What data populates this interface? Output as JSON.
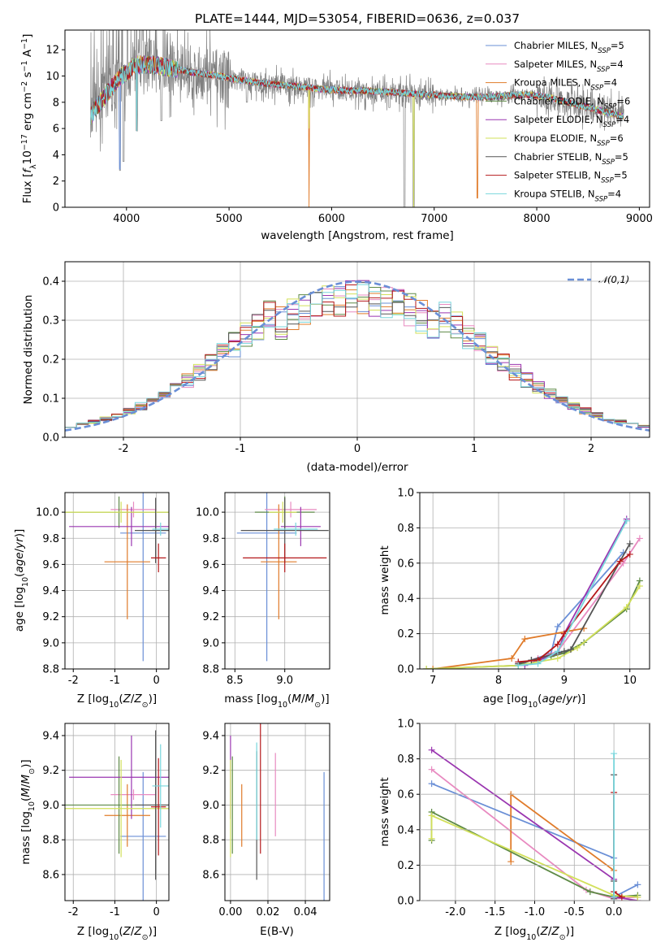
{
  "title": "PLATE=1444, MJD=53054, FIBERID=0636, z=0.037",
  "models": [
    {
      "name": "Chabrier MILES",
      "nssp": "5",
      "color": "#6a8fd6"
    },
    {
      "name": "Salpeter MILES",
      "nssp": "4",
      "color": "#e88ac0"
    },
    {
      "name": "Kroupa MILES",
      "nssp": "4",
      "color": "#e07b2a"
    },
    {
      "name": "Chabrier ELODIE",
      "nssp": "6",
      "color": "#5e8a46"
    },
    {
      "name": "Salpeter ELODIE",
      "nssp": "4",
      "color": "#9a36b0"
    },
    {
      "name": "Kroupa ELODIE",
      "nssp": "6",
      "color": "#d2e05a"
    },
    {
      "name": "Chabrier STELIB",
      "nssp": "5",
      "color": "#555555"
    },
    {
      "name": "Salpeter STELIB",
      "nssp": "5",
      "color": "#b5191b"
    },
    {
      "name": "Kroupa STELIB",
      "nssp": "4",
      "color": "#78d6dc"
    }
  ],
  "chart_data": [
    {
      "id": "spectrum",
      "type": "line",
      "xlabel": "wavelength [Angstrom, rest frame]",
      "ylabel": "Flux [f_λ 10^-17 erg cm^-2 s^-1 A^-1]",
      "xlim": [
        3400,
        9100
      ],
      "ylim": [
        0,
        13.5
      ],
      "xticks": [
        4000,
        5000,
        6000,
        7000,
        8000,
        9000
      ],
      "yticks": [
        0,
        2,
        4,
        6,
        8,
        10,
        12
      ],
      "legend_position": "top-right",
      "data_color": "#808080",
      "continuum": {
        "x": [
          3650,
          3800,
          3950,
          4100,
          4300,
          4500,
          4700,
          4900,
          5100,
          5300,
          5500,
          5700,
          5900,
          6100,
          6300,
          6500,
          6700,
          6900,
          7100,
          7300,
          7500,
          7700,
          7900,
          8100,
          8300,
          8500,
          8700,
          8850
        ],
        "y": [
          7.0,
          8.6,
          10.0,
          10.9,
          10.8,
          10.5,
          10.2,
          10.0,
          9.7,
          9.5,
          9.3,
          9.2,
          9.0,
          8.9,
          8.9,
          8.8,
          8.7,
          8.6,
          8.5,
          8.4,
          8.4,
          8.5,
          8.6,
          8.4,
          8.0,
          7.6,
          7.2,
          6.9
        ]
      },
      "dips": [
        {
          "x": 3935,
          "y": 2.8
        },
        {
          "x": 3970,
          "y": 3.5
        },
        {
          "x": 4100,
          "y": 5.8
        },
        {
          "x": 4340,
          "y": 6.6
        },
        {
          "x": 5175,
          "y": 8.0
        },
        {
          "x": 5780,
          "y": 0.0
        },
        {
          "x": 6563,
          "y": 7.6
        },
        {
          "x": 6710,
          "y": 0.0
        },
        {
          "x": 6800,
          "y": 0.0
        },
        {
          "x": 7420,
          "y": 0.7
        }
      ]
    },
    {
      "id": "residuals",
      "type": "line",
      "xlabel": "(data-model)/error",
      "ylabel": "Normed distribution",
      "xlim": [
        -2.5,
        2.5
      ],
      "ylim": [
        0,
        0.45
      ],
      "xticks": [
        -2,
        -1,
        0,
        1,
        2
      ],
      "yticks": [
        0.0,
        0.1,
        0.2,
        0.3,
        0.4
      ],
      "legend": "𝒩(0,1)",
      "legend_position": "top-right",
      "bin_width": 0.1
    },
    {
      "id": "age-vs-z",
      "type": "scatter",
      "xlabel": "Z [log10(Z/Z⊙)]",
      "ylabel": "age  [log10(age/yr)]",
      "xlim": [
        -2.2,
        0.3
      ],
      "ylim": [
        8.8,
        10.15
      ],
      "xticks": [
        -2,
        -1,
        0
      ],
      "yticks": [
        8.8,
        9.0,
        9.2,
        9.4,
        9.6,
        9.8,
        10.0
      ],
      "points": [
        {
          "x": -0.32,
          "xerr": 0.55,
          "y": 9.84,
          "yerr": 0.98,
          "model": 0
        },
        {
          "x": -0.55,
          "xerr": 0.55,
          "y": 10.02,
          "yerr": 0.06,
          "model": 1
        },
        {
          "x": -0.7,
          "xerr": 0.55,
          "y": 9.62,
          "yerr": 0.44,
          "model": 2
        },
        {
          "x": -0.9,
          "xerr": 1.3,
          "y": 10.0,
          "yerr": 0.12,
          "model": 3
        },
        {
          "x": -0.6,
          "xerr": 1.5,
          "y": 9.89,
          "yerr": 0.15,
          "model": 4
        },
        {
          "x": -0.85,
          "xerr": 1.35,
          "y": 10.0,
          "yerr": 0.08,
          "model": 5
        },
        {
          "x": -0.02,
          "xerr": 0.5,
          "y": 9.86,
          "yerr": 0.25,
          "model": 6
        },
        {
          "x": 0.05,
          "xerr": 0.18,
          "y": 9.65,
          "yerr": 0.11,
          "model": 7
        },
        {
          "x": 0.1,
          "xerr": 0.2,
          "y": 9.87,
          "yerr": 0.05,
          "model": 8
        }
      ]
    },
    {
      "id": "age-vs-mass",
      "type": "scatter",
      "xlabel": "mass [log10(M/M⊙)]",
      "ylabel": "",
      "xlim": [
        8.4,
        9.45
      ],
      "ylim": [
        8.8,
        10.15
      ],
      "xticks": [
        8.5,
        9.0
      ],
      "yticks": [
        8.8,
        9.0,
        9.2,
        9.4,
        9.6,
        9.8,
        10.0
      ],
      "points": [
        {
          "x": 8.82,
          "xerr": 0.3,
          "y": 9.84,
          "yerr": 0.98,
          "model": 0
        },
        {
          "x": 9.06,
          "xerr": 0.26,
          "y": 10.02,
          "yerr": 0.06,
          "model": 1
        },
        {
          "x": 8.94,
          "xerr": 0.18,
          "y": 9.62,
          "yerr": 0.44,
          "model": 2
        },
        {
          "x": 9.0,
          "xerr": 0.3,
          "y": 10.0,
          "yerr": 0.12,
          "model": 3
        },
        {
          "x": 9.16,
          "xerr": 0.2,
          "y": 9.89,
          "yerr": 0.15,
          "model": 4
        },
        {
          "x": 8.98,
          "xerr": 0.14,
          "y": 10.0,
          "yerr": 0.08,
          "model": 5
        },
        {
          "x": 9.0,
          "xerr": 0.44,
          "y": 9.86,
          "yerr": 0.25,
          "model": 6
        },
        {
          "x": 9.0,
          "xerr": 0.42,
          "y": 9.65,
          "yerr": 0.11,
          "model": 7
        },
        {
          "x": 9.11,
          "xerr": 0.22,
          "y": 9.87,
          "yerr": 0.05,
          "model": 8
        }
      ]
    },
    {
      "id": "mass-weight-vs-age",
      "type": "line",
      "xlabel": "age  [log10(age/yr)]",
      "ylabel": "mass weight",
      "xlim": [
        6.8,
        10.3
      ],
      "ylim": [
        0,
        1.0
      ],
      "xticks": [
        7,
        8,
        9,
        10
      ],
      "yticks": [
        0.0,
        0.2,
        0.4,
        0.6,
        0.8,
        1.0
      ],
      "series": [
        {
          "model": 0,
          "x": [
            8.3,
            8.5,
            8.8,
            8.9,
            9.9
          ],
          "y": [
            0.03,
            0.05,
            0.09,
            0.24,
            0.66
          ]
        },
        {
          "model": 1,
          "x": [
            8.3,
            8.6,
            8.9,
            9.9,
            10.15
          ],
          "y": [
            0.03,
            0.06,
            0.1,
            0.6,
            0.74
          ]
        },
        {
          "model": 2,
          "x": [
            7.0,
            8.2,
            8.4,
            9.3
          ],
          "y": [
            0.0,
            0.06,
            0.17,
            0.23
          ]
        },
        {
          "model": 3,
          "x": [
            6.9,
            8.3,
            8.5,
            8.8,
            9.0,
            9.3,
            9.95,
            10.15
          ],
          "y": [
            0.0,
            0.02,
            0.05,
            0.07,
            0.09,
            0.15,
            0.34,
            0.5
          ]
        },
        {
          "model": 4,
          "x": [
            8.4,
            8.9,
            9.0,
            9.95
          ],
          "y": [
            0.02,
            0.09,
            0.2,
            0.85
          ]
        },
        {
          "model": 5,
          "x": [
            6.9,
            8.3,
            8.6,
            8.9,
            9.2,
            9.95,
            10.15
          ],
          "y": [
            0.0,
            0.02,
            0.04,
            0.06,
            0.12,
            0.35,
            0.47
          ]
        },
        {
          "model": 6,
          "x": [
            8.3,
            8.5,
            9.0,
            9.1,
            10.0
          ],
          "y": [
            0.03,
            0.05,
            0.1,
            0.11,
            0.71
          ]
        },
        {
          "model": 7,
          "x": [
            8.3,
            8.6,
            8.9,
            9.0,
            9.85,
            10.0
          ],
          "y": [
            0.04,
            0.05,
            0.14,
            0.2,
            0.61,
            0.65
          ]
        },
        {
          "model": 8,
          "x": [
            8.3,
            8.6,
            8.9,
            9.95
          ],
          "y": [
            0.02,
            0.03,
            0.1,
            0.84
          ]
        }
      ]
    },
    {
      "id": "mass-vs-z",
      "type": "scatter",
      "xlabel": "Z [log10(Z/Z⊙)]",
      "ylabel": "mass [log10(M/M⊙)]",
      "xlim": [
        -2.2,
        0.3
      ],
      "ylim": [
        8.45,
        9.47
      ],
      "xticks": [
        -2,
        -1,
        0
      ],
      "yticks": [
        8.6,
        8.8,
        9.0,
        9.2,
        9.4
      ],
      "points": [
        {
          "x": -0.32,
          "xerr": 0.55,
          "y": 8.82,
          "yerr": 0.37,
          "model": 0
        },
        {
          "x": -0.55,
          "xerr": 0.55,
          "y": 9.06,
          "yerr": 0.03,
          "model": 1
        },
        {
          "x": -0.7,
          "xerr": 0.55,
          "y": 8.94,
          "yerr": 0.18,
          "model": 2
        },
        {
          "x": -0.9,
          "xerr": 1.3,
          "y": 9.0,
          "yerr": 0.28,
          "model": 3
        },
        {
          "x": -0.6,
          "xerr": 1.5,
          "y": 9.16,
          "yerr": 0.24,
          "model": 4
        },
        {
          "x": -0.85,
          "xerr": 1.35,
          "y": 8.98,
          "yerr": 0.28,
          "model": 5
        },
        {
          "x": -0.02,
          "xerr": 0.5,
          "y": 9.0,
          "yerr": 0.43,
          "model": 6
        },
        {
          "x": 0.05,
          "xerr": 0.18,
          "y": 8.99,
          "yerr": 0.28,
          "model": 7
        },
        {
          "x": 0.1,
          "xerr": 0.2,
          "y": 9.11,
          "yerr": 0.24,
          "model": 8
        }
      ]
    },
    {
      "id": "mass-vs-ebv",
      "type": "scatter",
      "xlabel": "E(B-V)",
      "ylabel": "",
      "xlim": [
        -0.003,
        0.053
      ],
      "ylim": [
        8.45,
        9.47
      ],
      "xticks": [
        0.0,
        0.02,
        0.04
      ],
      "yticks": [
        8.6,
        8.8,
        9.0,
        9.2,
        9.4
      ],
      "points": [
        {
          "x": 0.05,
          "y": 8.82,
          "yerr": 0.37,
          "model": 0
        },
        {
          "x": 0.024,
          "y": 9.06,
          "yerr": 0.24,
          "model": 1
        },
        {
          "x": 0.006,
          "y": 8.94,
          "yerr": 0.18,
          "model": 2
        },
        {
          "x": 0.001,
          "y": 9.0,
          "yerr": 0.28,
          "model": 3
        },
        {
          "x": 0.0,
          "y": 9.16,
          "yerr": 0.24,
          "model": 4
        },
        {
          "x": 0.0,
          "y": 8.98,
          "yerr": 0.28,
          "model": 5
        },
        {
          "x": 0.014,
          "y": 8.94,
          "yerr": 0.37,
          "model": 6
        },
        {
          "x": 0.016,
          "y": 9.1,
          "yerr": 0.38,
          "model": 7
        },
        {
          "x": 0.014,
          "y": 9.08,
          "yerr": 0.28,
          "model": 8
        }
      ]
    },
    {
      "id": "mass-weight-vs-z",
      "type": "line",
      "xlabel": "Z [log10(Z/Z⊙)]",
      "ylabel": "mass weight",
      "xlim": [
        -2.45,
        0.45
      ],
      "ylim": [
        0,
        1.0
      ],
      "xticks": [
        -2.0,
        -1.5,
        -1.0,
        -0.5,
        0.0
      ],
      "series": [
        {
          "model": 0,
          "x": [
            -2.3,
            0.0,
            0.0,
            0.3
          ],
          "y": [
            0.66,
            0.24,
            0.02,
            0.09
          ]
        },
        {
          "model": 1,
          "x": [
            -2.3,
            -0.35,
            0.0,
            0.3
          ],
          "y": [
            0.74,
            0.06,
            0.01,
            0.02
          ]
        },
        {
          "model": 2,
          "x": [
            -1.3,
            -1.3,
            0.0,
            0.0
          ],
          "y": [
            0.22,
            0.6,
            0.17,
            0.02
          ]
        },
        {
          "model": 3,
          "x": [
            -2.3,
            -2.3,
            -0.3,
            0.0,
            0.3
          ],
          "y": [
            0.34,
            0.5,
            0.05,
            0.02,
            0.03
          ]
        },
        {
          "model": 4,
          "x": [
            -2.3,
            0.0,
            0.0,
            0.3
          ],
          "y": [
            0.85,
            0.12,
            0.02,
            0.0
          ]
        },
        {
          "model": 5,
          "x": [
            -2.3,
            -2.3,
            0.0,
            0.3
          ],
          "y": [
            0.35,
            0.48,
            0.03,
            0.02
          ]
        },
        {
          "model": 6,
          "x": [
            0.0,
            0.0,
            0.0
          ],
          "y": [
            0.01,
            0.11,
            0.71
          ]
        },
        {
          "model": 7,
          "x": [
            0.0,
            0.0,
            0.1
          ],
          "y": [
            0.61,
            0.05,
            0.02
          ]
        },
        {
          "model": 8,
          "x": [
            0.0,
            0.0
          ],
          "y": [
            0.02,
            0.83
          ]
        }
      ]
    }
  ]
}
